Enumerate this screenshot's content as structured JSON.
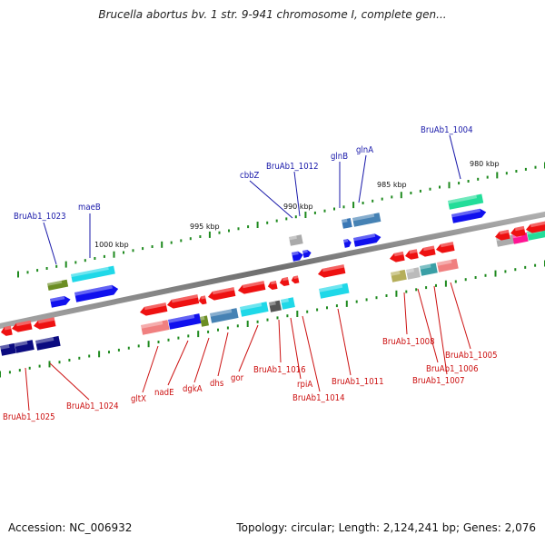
{
  "title": "Brucella abortus bv. 1 str. 9-941 chromosome I, complete gen...",
  "footer": {
    "accession": "Accession: NC_006932",
    "summary": "Topology: circular; Length: 2,124,241 bp; Genes: 2,076"
  },
  "scale_ticks": [
    "1000 kbp",
    "995 kbp",
    "990 kbp",
    "985 kbp",
    "980 kbp"
  ],
  "colors": {
    "forward_label": "#1a1aaa",
    "reverse_label": "#cc1111",
    "backbone": "#8a8a8a",
    "tick_mark": "#1f8a1f"
  },
  "forward_labels": [
    "BruAb1_1023",
    "maeB",
    "cbbZ",
    "BruAb1_1012",
    "glnB",
    "glnA",
    "BruAb1_1004"
  ],
  "reverse_labels": [
    "BruAb1_1025",
    "BruAb1_1024",
    "gltX",
    "nadE",
    "dgkA",
    "dhs",
    "gor",
    "BruAb1_1016",
    "rpiA",
    "BruAb1_1014",
    "BruAb1_1011",
    "BruAb1_1008",
    "BruAb1_1006",
    "BruAb1_1007",
    "BruAb1_1005"
  ]
}
